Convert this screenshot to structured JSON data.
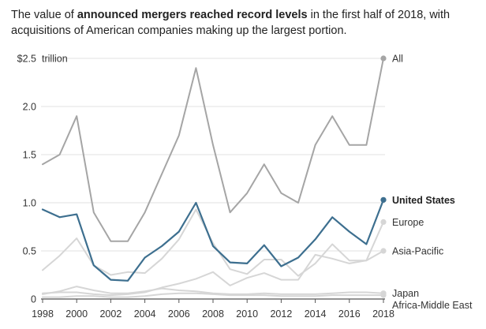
{
  "header": {
    "text_before": "The value of ",
    "text_bold": "announced mergers reached record levels",
    "text_after": " in the first half of 2018, with acquisitions of American companies making up the largest portion."
  },
  "chart_data": {
    "type": "line",
    "title": "",
    "xlabel": "",
    "ylabel": "",
    "unit_label": "trillion",
    "ylim": [
      0,
      2.5
    ],
    "xlim": [
      1998,
      2018
    ],
    "grid": true,
    "y_ticks": [
      {
        "value": 0,
        "label": "0"
      },
      {
        "value": 0.5,
        "label": "0.5"
      },
      {
        "value": 1.0,
        "label": "1.0"
      },
      {
        "value": 1.5,
        "label": "1.5"
      },
      {
        "value": 2.0,
        "label": "2.0"
      },
      {
        "value": 2.5,
        "label": "$2.5"
      }
    ],
    "x_ticks": [
      1998,
      2000,
      2002,
      2004,
      2006,
      2008,
      2010,
      2012,
      2014,
      2016,
      2018
    ],
    "x": [
      1998,
      1999,
      2000,
      2001,
      2002,
      2003,
      2004,
      2005,
      2006,
      2007,
      2008,
      2009,
      2010,
      2011,
      2012,
      2013,
      2014,
      2015,
      2016,
      2017,
      2018
    ],
    "series": [
      {
        "name": "Africa-Middle East",
        "color": "#d6d6d6",
        "bold": false,
        "values": [
          0.02,
          0.02,
          0.03,
          0.03,
          0.02,
          0.02,
          0.03,
          0.05,
          0.06,
          0.06,
          0.05,
          0.04,
          0.04,
          0.04,
          0.03,
          0.03,
          0.03,
          0.04,
          0.04,
          0.04,
          0.04
        ]
      },
      {
        "name": "Japan",
        "color": "#d6d6d6",
        "bold": false,
        "values": [
          0.05,
          0.08,
          0.13,
          0.09,
          0.06,
          0.06,
          0.08,
          0.11,
          0.09,
          0.08,
          0.06,
          0.05,
          0.05,
          0.06,
          0.05,
          0.05,
          0.05,
          0.06,
          0.07,
          0.07,
          0.06
        ]
      },
      {
        "name": "Asia-Pacific",
        "color": "#d6d6d6",
        "bold": false,
        "values": [
          0.06,
          0.07,
          0.07,
          0.05,
          0.04,
          0.05,
          0.07,
          0.12,
          0.16,
          0.21,
          0.28,
          0.14,
          0.22,
          0.27,
          0.2,
          0.2,
          0.46,
          0.42,
          0.37,
          0.4,
          0.5
        ]
      },
      {
        "name": "Europe",
        "color": "#d6d6d6",
        "bold": false,
        "values": [
          0.3,
          0.45,
          0.63,
          0.35,
          0.25,
          0.28,
          0.27,
          0.42,
          0.62,
          0.93,
          0.58,
          0.31,
          0.26,
          0.41,
          0.41,
          0.24,
          0.37,
          0.57,
          0.4,
          0.4,
          0.8
        ]
      },
      {
        "name": "All",
        "color": "#a5a5a5",
        "bold": false,
        "values": [
          1.4,
          1.5,
          1.9,
          0.9,
          0.6,
          0.6,
          0.9,
          1.3,
          1.7,
          2.4,
          1.6,
          0.9,
          1.1,
          1.4,
          1.1,
          1.0,
          1.6,
          1.9,
          1.6,
          1.6,
          2.5
        ]
      },
      {
        "name": "United States",
        "color": "#3d6f8f",
        "bold": true,
        "values": [
          0.93,
          0.85,
          0.88,
          0.35,
          0.2,
          0.19,
          0.43,
          0.55,
          0.7,
          1.0,
          0.55,
          0.38,
          0.37,
          0.56,
          0.34,
          0.43,
          0.62,
          0.85,
          0.7,
          0.57,
          1.03
        ]
      }
    ],
    "label_order": [
      "All",
      "United States",
      "Europe",
      "Asia-Pacific",
      "Japan",
      "Africa-Middle East"
    ]
  }
}
